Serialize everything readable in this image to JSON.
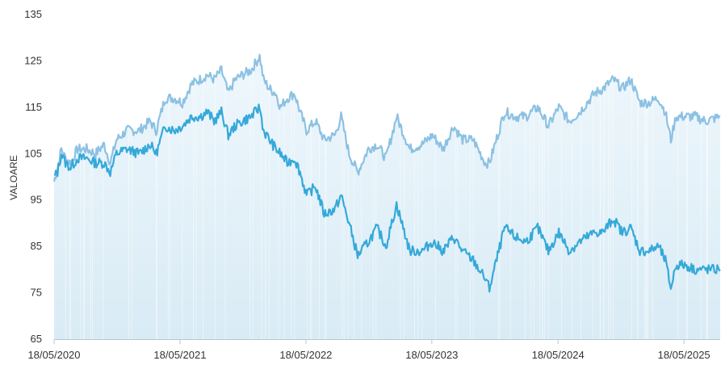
{
  "chart_data": {
    "type": "line",
    "ylabel": "VALOARE",
    "ylim": [
      65,
      135
    ],
    "yticks": [
      65,
      75,
      85,
      95,
      105,
      115,
      125,
      135
    ],
    "xlim": [
      "2020-05-18",
      "2025-08-31"
    ],
    "xticks": [
      {
        "date": "2020-05-18",
        "label": "18/05/2020"
      },
      {
        "date": "2021-05-18",
        "label": "18/05/2021"
      },
      {
        "date": "2022-05-18",
        "label": "18/05/2022"
      },
      {
        "date": "2023-05-18",
        "label": "18/05/2023"
      },
      {
        "date": "2024-05-18",
        "label": "18/05/2024"
      },
      {
        "date": "2025-05-18",
        "label": "18/05/2025"
      }
    ],
    "grid": false,
    "legend": "none",
    "colors": {
      "series_light": "#8cc1e3",
      "series_dark": "#35a9d9",
      "area_top": "#eaf5fb",
      "area_bottom": "#d6eaf5",
      "axis": "#b9c7d3"
    },
    "series": [
      {
        "key": "light",
        "points": [
          [
            "2020-05-18",
            99
          ],
          [
            "2020-05-28",
            102
          ],
          [
            "2020-06-08",
            106
          ],
          [
            "2020-06-20",
            104
          ],
          [
            "2020-07-05",
            103
          ],
          [
            "2020-07-25",
            106
          ],
          [
            "2020-08-20",
            106
          ],
          [
            "2020-09-15",
            105
          ],
          [
            "2020-10-10",
            107
          ],
          [
            "2020-10-28",
            103
          ],
          [
            "2020-11-15",
            108
          ],
          [
            "2020-12-15",
            110
          ],
          [
            "2021-01-20",
            110
          ],
          [
            "2021-02-20",
            112
          ],
          [
            "2021-03-10",
            110
          ],
          [
            "2021-04-05",
            117
          ],
          [
            "2021-05-01",
            117
          ],
          [
            "2021-05-25",
            116
          ],
          [
            "2021-06-20",
            120
          ],
          [
            "2021-07-15",
            121
          ],
          [
            "2021-08-05",
            122
          ],
          [
            "2021-08-25",
            121
          ],
          [
            "2021-09-15",
            123
          ],
          [
            "2021-10-05",
            118
          ],
          [
            "2021-10-25",
            121
          ],
          [
            "2021-11-15",
            122
          ],
          [
            "2021-12-10",
            123
          ],
          [
            "2022-01-04",
            126
          ],
          [
            "2022-01-15",
            121
          ],
          [
            "2022-02-01",
            119
          ],
          [
            "2022-02-20",
            118
          ],
          [
            "2022-03-05",
            115
          ],
          [
            "2022-03-25",
            117
          ],
          [
            "2022-04-15",
            118
          ],
          [
            "2022-05-01",
            114
          ],
          [
            "2022-05-20",
            110
          ],
          [
            "2022-06-15",
            112
          ],
          [
            "2022-07-10",
            108
          ],
          [
            "2022-08-10",
            109
          ],
          [
            "2022-08-28",
            113
          ],
          [
            "2022-09-20",
            105
          ],
          [
            "2022-10-15",
            101
          ],
          [
            "2022-11-15",
            106
          ],
          [
            "2022-12-10",
            107
          ],
          [
            "2023-01-05",
            104
          ],
          [
            "2023-02-05",
            113
          ],
          [
            "2023-03-15",
            106
          ],
          [
            "2023-04-20",
            107
          ],
          [
            "2023-05-20",
            109
          ],
          [
            "2023-06-20",
            106
          ],
          [
            "2023-07-20",
            111
          ],
          [
            "2023-08-15",
            108
          ],
          [
            "2023-09-15",
            108
          ],
          [
            "2023-10-20",
            103
          ],
          [
            "2023-11-01",
            103
          ],
          [
            "2023-11-25",
            109
          ],
          [
            "2023-12-15",
            114
          ],
          [
            "2024-01-15",
            113
          ],
          [
            "2024-02-15",
            113
          ],
          [
            "2024-03-20",
            115
          ],
          [
            "2024-04-20",
            111
          ],
          [
            "2024-05-20",
            115
          ],
          [
            "2024-06-20",
            112
          ],
          [
            "2024-07-20",
            114
          ],
          [
            "2024-08-10",
            116
          ],
          [
            "2024-09-01",
            118
          ],
          [
            "2024-09-25",
            119
          ],
          [
            "2024-10-25",
            121
          ],
          [
            "2024-11-20",
            119
          ],
          [
            "2024-12-15",
            121
          ],
          [
            "2025-01-10",
            116
          ],
          [
            "2025-02-05",
            116
          ],
          [
            "2025-03-05",
            117
          ],
          [
            "2025-03-25",
            114
          ],
          [
            "2025-04-10",
            108
          ],
          [
            "2025-04-25",
            113
          ],
          [
            "2025-05-20",
            113
          ],
          [
            "2025-06-20",
            113
          ],
          [
            "2025-07-20",
            112
          ],
          [
            "2025-08-31",
            113
          ]
        ]
      },
      {
        "key": "dark",
        "points": [
          [
            "2020-05-18",
            100
          ],
          [
            "2020-05-28",
            101
          ],
          [
            "2020-06-08",
            105
          ],
          [
            "2020-06-20",
            103
          ],
          [
            "2020-07-05",
            102
          ],
          [
            "2020-07-25",
            104
          ],
          [
            "2020-08-20",
            104
          ],
          [
            "2020-09-15",
            103
          ],
          [
            "2020-10-10",
            103
          ],
          [
            "2020-10-28",
            101
          ],
          [
            "2020-11-15",
            105
          ],
          [
            "2020-12-15",
            106
          ],
          [
            "2021-01-20",
            105
          ],
          [
            "2021-02-20",
            107
          ],
          [
            "2021-03-10",
            105
          ],
          [
            "2021-04-05",
            111
          ],
          [
            "2021-05-01",
            110
          ],
          [
            "2021-05-25",
            111
          ],
          [
            "2021-06-20",
            113
          ],
          [
            "2021-07-15",
            113
          ],
          [
            "2021-08-05",
            114
          ],
          [
            "2021-08-25",
            112
          ],
          [
            "2021-09-15",
            114
          ],
          [
            "2021-10-05",
            109
          ],
          [
            "2021-10-25",
            111
          ],
          [
            "2021-11-15",
            112
          ],
          [
            "2021-12-10",
            113
          ],
          [
            "2022-01-04",
            115
          ],
          [
            "2022-01-15",
            110
          ],
          [
            "2022-02-01",
            108
          ],
          [
            "2022-02-20",
            106
          ],
          [
            "2022-03-05",
            105
          ],
          [
            "2022-03-25",
            103
          ],
          [
            "2022-04-15",
            104
          ],
          [
            "2022-05-01",
            101
          ],
          [
            "2022-05-20",
            96
          ],
          [
            "2022-06-15",
            98
          ],
          [
            "2022-07-10",
            92
          ],
          [
            "2022-08-10",
            93
          ],
          [
            "2022-08-28",
            96
          ],
          [
            "2022-09-20",
            90
          ],
          [
            "2022-10-15",
            83
          ],
          [
            "2022-11-15",
            86
          ],
          [
            "2022-12-10",
            89
          ],
          [
            "2023-01-05",
            85
          ],
          [
            "2023-02-05",
            94
          ],
          [
            "2023-03-15",
            84
          ],
          [
            "2023-04-20",
            84
          ],
          [
            "2023-05-20",
            86
          ],
          [
            "2023-06-20",
            84
          ],
          [
            "2023-07-20",
            87
          ],
          [
            "2023-08-15",
            84
          ],
          [
            "2023-09-15",
            82
          ],
          [
            "2023-10-20",
            78
          ],
          [
            "2023-11-01",
            76
          ],
          [
            "2023-11-25",
            83
          ],
          [
            "2023-12-15",
            89
          ],
          [
            "2024-01-15",
            87
          ],
          [
            "2024-02-15",
            86
          ],
          [
            "2024-03-20",
            89
          ],
          [
            "2024-04-20",
            84
          ],
          [
            "2024-05-20",
            88
          ],
          [
            "2024-06-20",
            84
          ],
          [
            "2024-07-20",
            86
          ],
          [
            "2024-08-10",
            87
          ],
          [
            "2024-09-01",
            88
          ],
          [
            "2024-09-25",
            88
          ],
          [
            "2024-10-25",
            91
          ],
          [
            "2024-11-20",
            88
          ],
          [
            "2024-12-15",
            89
          ],
          [
            "2025-01-10",
            84
          ],
          [
            "2025-02-05",
            84
          ],
          [
            "2025-03-05",
            85
          ],
          [
            "2025-03-25",
            82
          ],
          [
            "2025-04-10",
            76
          ],
          [
            "2025-04-25",
            81
          ],
          [
            "2025-05-20",
            81
          ],
          [
            "2025-06-20",
            80
          ],
          [
            "2025-07-20",
            80
          ],
          [
            "2025-08-31",
            80
          ]
        ]
      }
    ]
  }
}
